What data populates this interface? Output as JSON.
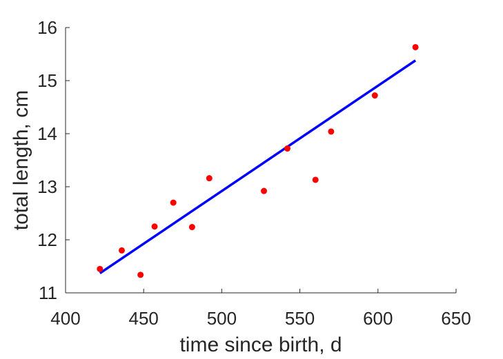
{
  "chart_data": {
    "type": "scatter",
    "xlabel": "time since birth, d",
    "ylabel": "total length, cm",
    "xlim": [
      400,
      650
    ],
    "ylim": [
      11,
      16
    ],
    "xticks": [
      "400",
      "450",
      "500",
      "550",
      "600",
      "650"
    ],
    "yticks": [
      "11",
      "12",
      "13",
      "14",
      "15",
      "16"
    ],
    "grid": false,
    "series": [
      {
        "kind": "points",
        "color": "#ff0000",
        "x": [
          422,
          436,
          448,
          457,
          469,
          481,
          492,
          527,
          542,
          560,
          570,
          598,
          624
        ],
        "y": [
          11.45,
          11.8,
          11.34,
          12.25,
          12.7,
          12.24,
          13.16,
          12.92,
          13.72,
          13.13,
          14.04,
          14.72,
          15.63
        ]
      },
      {
        "kind": "line",
        "color": "#0000ff",
        "x": [
          422,
          624
        ],
        "y": [
          11.37,
          15.38
        ]
      }
    ]
  }
}
